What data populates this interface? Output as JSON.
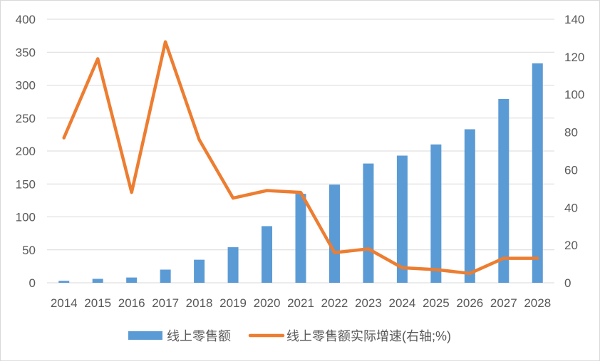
{
  "chart_data": {
    "type": "bar",
    "categories": [
      "2014",
      "2015",
      "2016",
      "2017",
      "2018",
      "2019",
      "2020",
      "2021",
      "2022",
      "2023",
      "2024",
      "2025",
      "2026",
      "2027",
      "2028"
    ],
    "series": [
      {
        "name": "线上零售额",
        "type": "bar",
        "axis": "left",
        "color": "#5B9BD5",
        "values": [
          3,
          6,
          8,
          20,
          35,
          54,
          86,
          135,
          149,
          181,
          193,
          210,
          233,
          279,
          333
        ]
      },
      {
        "name": "线上零售额实际增速(右轴;%)",
        "type": "line",
        "axis": "right",
        "color": "#ED7D31",
        "values": [
          77,
          119,
          48,
          128,
          76,
          45,
          49,
          48,
          16,
          18,
          8,
          7,
          5,
          13,
          13
        ]
      }
    ],
    "y_left": {
      "min": 0,
      "max": 400,
      "step": 50,
      "ticks": [
        "0",
        "50",
        "100",
        "150",
        "200",
        "250",
        "300",
        "350",
        "400"
      ]
    },
    "y_right": {
      "min": 0,
      "max": 140,
      "step": 20,
      "ticks": [
        "0",
        "20",
        "40",
        "60",
        "80",
        "100",
        "120",
        "140"
      ]
    },
    "grid": true,
    "legend_position": "bottom"
  }
}
